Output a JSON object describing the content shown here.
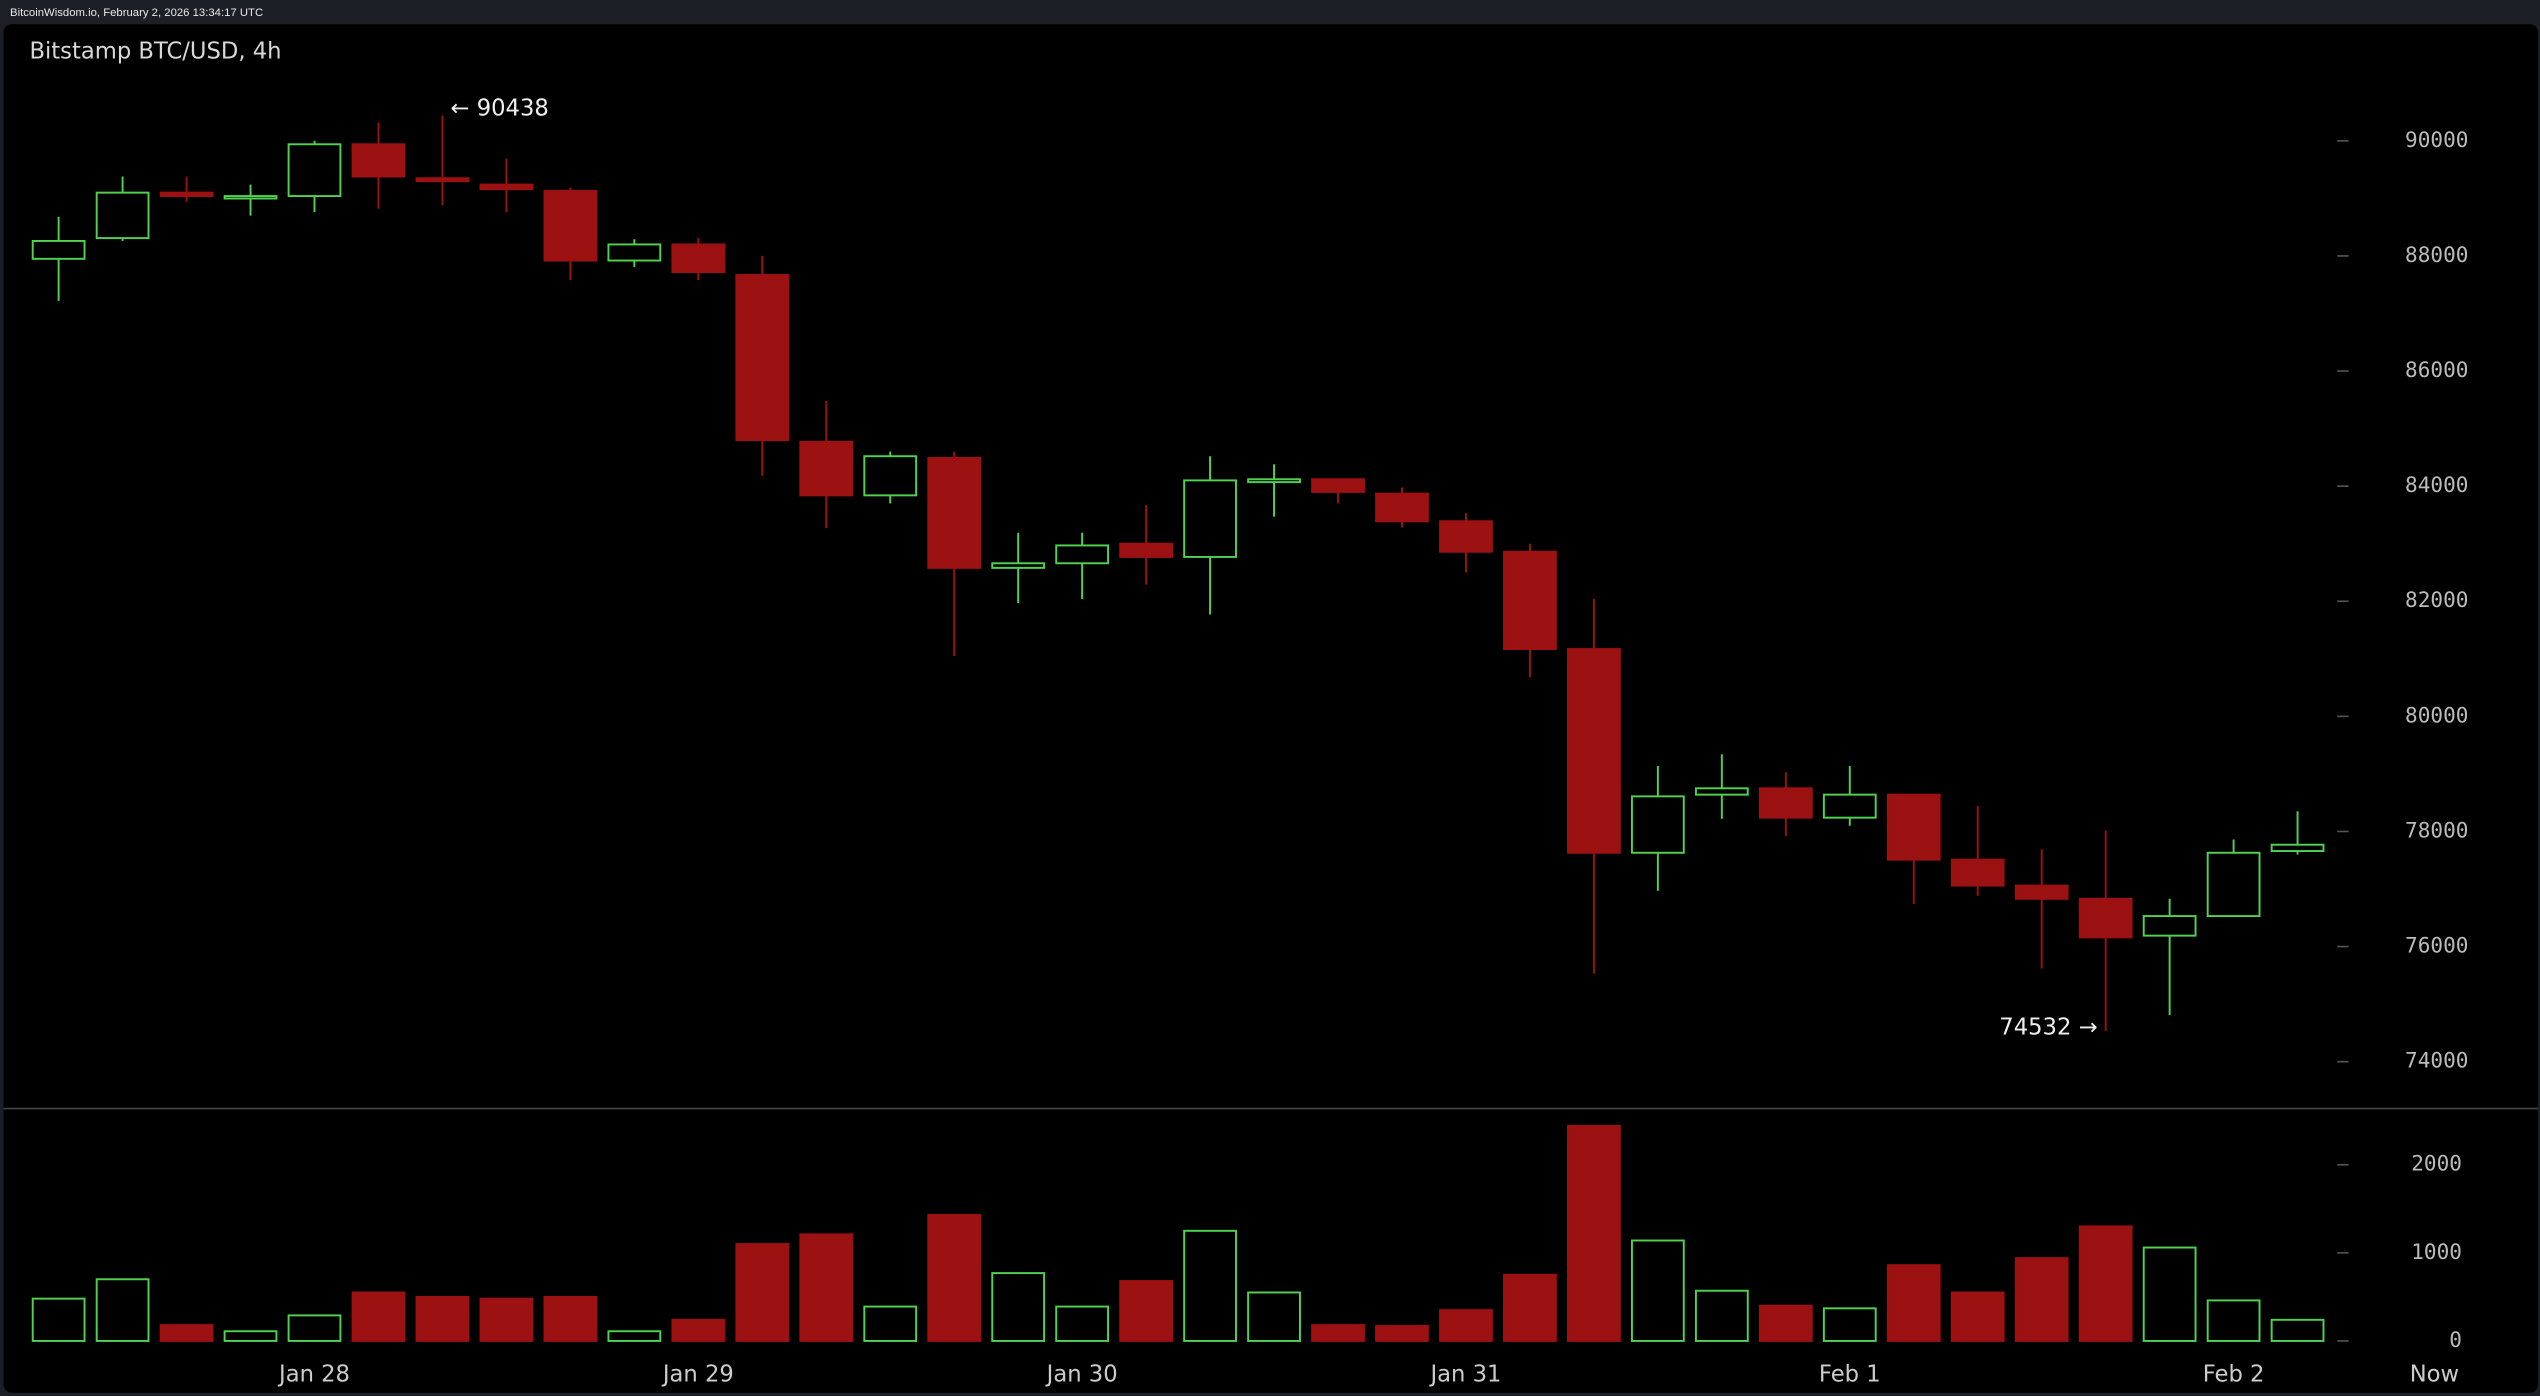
{
  "header": "BitcoinWisdom.io, February 2, 2026 13:34:17 UTC",
  "chart_data": {
    "type": "candlestick",
    "title": "Bitstamp BTC/USD, 4h",
    "categories": [
      null,
      null,
      null,
      null,
      "Jan 28",
      null,
      null,
      null,
      null,
      null,
      "Jan 29",
      null,
      null,
      null,
      null,
      null,
      "Jan 30",
      null,
      null,
      null,
      null,
      null,
      "Jan 31",
      null,
      null,
      null,
      null,
      null,
      "Feb 1",
      null,
      null,
      null,
      null,
      null,
      "Feb 2",
      null
    ],
    "now_label": "Now",
    "open": [
      87950,
      88310,
      89100,
      89000,
      89040,
      89940,
      89350,
      89240,
      89130,
      87920,
      88200,
      87670,
      84770,
      83840,
      84490,
      82580,
      82660,
      83000,
      82770,
      84070,
      84120,
      83870,
      83390,
      82860,
      81170,
      77630,
      78640,
      78750,
      78240,
      78640,
      77510,
      77060,
      76830,
      76190,
      76530,
      77660
    ],
    "high": [
      88680,
      89380,
      89380,
      89240,
      90000,
      90320,
      90438,
      89690,
      89190,
      88290,
      88310,
      88000,
      85480,
      84600,
      84600,
      83190,
      83190,
      83670,
      84520,
      84380,
      84120,
      83980,
      83530,
      83000,
      82040,
      79140,
      79340,
      79030,
      79140,
      78640,
      78440,
      77690,
      78020,
      76830,
      77860,
      78350
    ],
    "low": [
      87220,
      88260,
      88940,
      88700,
      88760,
      88820,
      88880,
      88760,
      87580,
      87810,
      87580,
      84180,
      83270,
      83700,
      81050,
      81970,
      82040,
      82290,
      81770,
      83470,
      83700,
      83280,
      82500,
      80680,
      75530,
      76970,
      78220,
      77920,
      78100,
      76740,
      76880,
      75620,
      74532,
      74810,
      76560,
      77600
    ],
    "close": [
      88260,
      89100,
      89040,
      89040,
      89940,
      89380,
      89300,
      89160,
      87920,
      88200,
      87720,
      84800,
      83840,
      84520,
      82580,
      82660,
      82970,
      82770,
      84100,
      84120,
      83900,
      83390,
      82860,
      81170,
      77630,
      78610,
      78750,
      78240,
      78640,
      77510,
      77060,
      76830,
      76160,
      76530,
      77630,
      77770
    ],
    "volume": [
      480,
      700,
      180,
      110,
      290,
      550,
      500,
      480,
      500,
      110,
      240,
      1100,
      1210,
      390,
      1430,
      770,
      390,
      680,
      1250,
      550,
      180,
      170,
      350,
      750,
      2440,
      1140,
      570,
      400,
      370,
      860,
      550,
      940,
      1300,
      1060,
      460,
      240
    ],
    "up_color": "#4fd24f",
    "down_color": "#9c1111",
    "ylim": [
      73200,
      91040
    ],
    "yticks": [
      74000,
      76000,
      78000,
      80000,
      82000,
      84000,
      86000,
      88000,
      90000
    ],
    "y2lim": [
      0,
      2500
    ],
    "y2ticks": [
      0,
      1000,
      2000
    ],
    "annotations": [
      {
        "label": "← 90438",
        "value": 90438
      },
      {
        "label": "74532 →",
        "value": 74532
      }
    ]
  }
}
